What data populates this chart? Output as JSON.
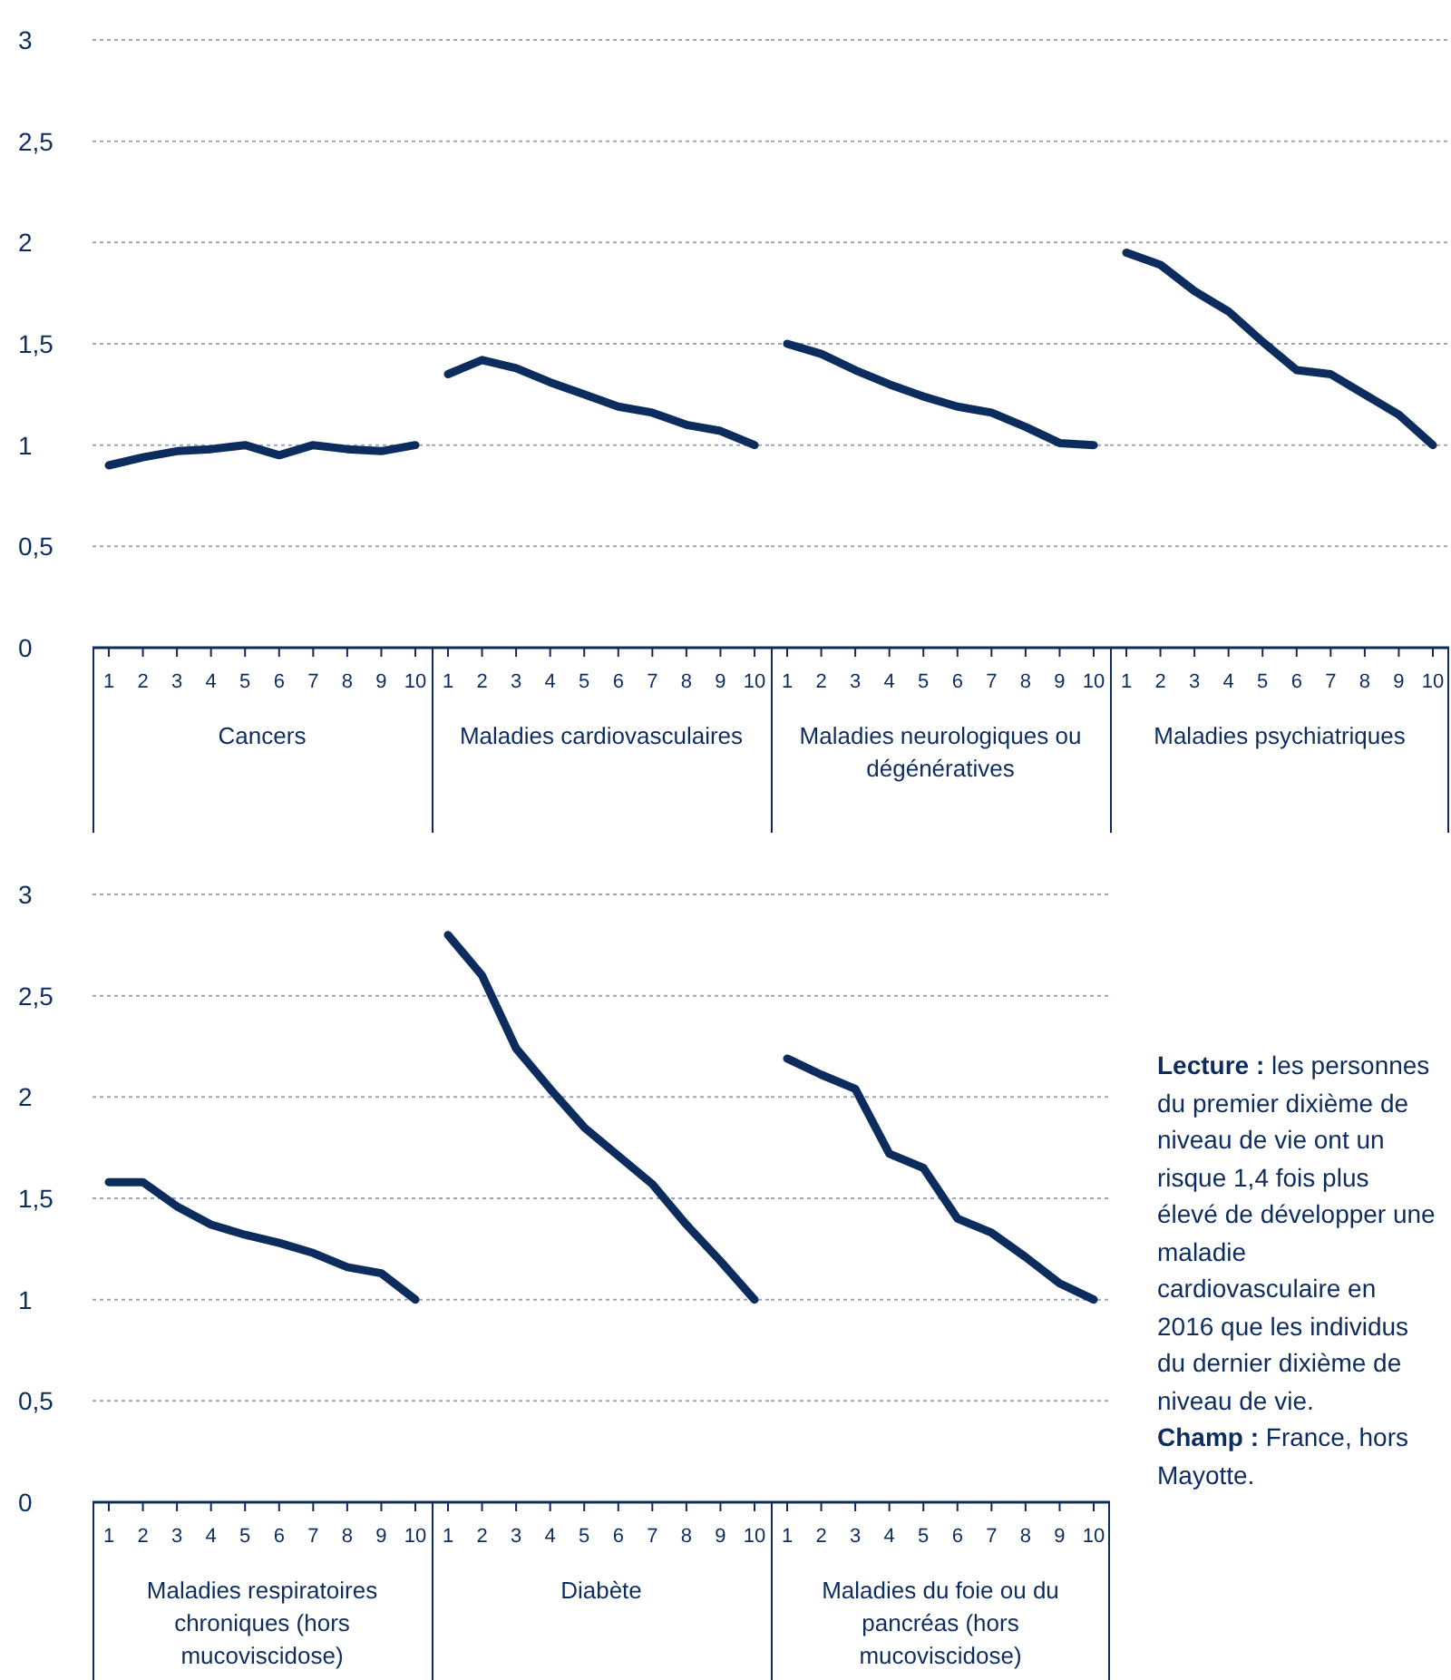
{
  "chart_data": [
    {
      "type": "line",
      "xlabel": "Cancers",
      "categories": [
        "1",
        "2",
        "3",
        "4",
        "5",
        "6",
        "7",
        "8",
        "9",
        "10"
      ],
      "values": [
        0.9,
        0.94,
        0.97,
        0.98,
        1.0,
        0.95,
        1.0,
        0.98,
        0.97,
        1.0
      ],
      "color": "#0c2c5e",
      "ylim": [
        0,
        3
      ],
      "yticks": [
        0,
        {
          "value": 0.5,
          "label": "0,5"
        },
        1,
        {
          "value": 1.5,
          "label": "1,5"
        },
        2,
        {
          "value": 2.5,
          "label": "2,5"
        },
        3
      ],
      "grid": "y"
    },
    {
      "type": "line",
      "xlabel": "Maladies cardiovasculaires",
      "categories": [
        "1",
        "2",
        "3",
        "4",
        "5",
        "6",
        "7",
        "8",
        "9",
        "10"
      ],
      "values": [
        1.35,
        1.42,
        1.38,
        1.31,
        1.25,
        1.19,
        1.16,
        1.1,
        1.07,
        1.0
      ],
      "color": "#0c2c5e",
      "ylim": [
        0,
        3
      ],
      "yticks": [
        0,
        0.5,
        1,
        1.5,
        2,
        2.5,
        3
      ],
      "grid": "y",
      "tick_labels": "x"
    },
    {
      "type": "line",
      "xlabel": "Maladies neurologiques ou dégénératives",
      "categories": [
        "1",
        "2",
        "3",
        "4",
        "5",
        "6",
        "7",
        "8",
        "9",
        "10"
      ],
      "values": [
        1.5,
        1.45,
        1.37,
        1.3,
        1.24,
        1.19,
        1.16,
        1.09,
        1.01,
        1.0
      ],
      "color": "#0c2c5e",
      "ylim": [
        0,
        3
      ],
      "yticks": [
        0,
        0.5,
        1,
        1.5,
        2,
        2.5,
        3
      ],
      "grid": "y",
      "tick_labels": "x"
    },
    {
      "type": "line",
      "xlabel": "Maladies psychiatriques",
      "categories": [
        "1",
        "2",
        "3",
        "4",
        "5",
        "6",
        "7",
        "8",
        "9",
        "10"
      ],
      "values": [
        1.95,
        1.89,
        1.76,
        1.66,
        1.51,
        1.37,
        1.35,
        1.25,
        1.15,
        1.0
      ],
      "color": "#0c2c5e",
      "ylim": [
        0,
        3
      ],
      "yticks": [
        0,
        0.5,
        1,
        1.5,
        2,
        2.5,
        3
      ],
      "grid": "y",
      "tick_labels": "x"
    },
    {
      "type": "line",
      "xlabel": "Maladies respiratoires chroniques (hors mucoviscidose)",
      "categories": [
        "1",
        "2",
        "3",
        "4",
        "5",
        "6",
        "7",
        "8",
        "9",
        "10"
      ],
      "values": [
        1.58,
        1.58,
        1.46,
        1.37,
        1.32,
        1.28,
        1.23,
        1.16,
        1.13,
        1.0
      ],
      "color": "#0c2c5e",
      "ylim": [
        0,
        3
      ],
      "yticks": [
        0,
        {
          "value": 0.5,
          "label": "0,5"
        },
        1,
        {
          "value": 1.5,
          "label": "1,5"
        },
        2,
        {
          "value": 2.5,
          "label": "2,5"
        },
        3
      ],
      "grid": "y"
    },
    {
      "type": "line",
      "xlabel": "Diabète",
      "categories": [
        "1",
        "2",
        "3",
        "4",
        "5",
        "6",
        "7",
        "8",
        "9",
        "10"
      ],
      "values": [
        2.8,
        2.6,
        2.24,
        2.04,
        1.85,
        1.71,
        1.57,
        1.37,
        1.19,
        1.0
      ],
      "color": "#0c2c5e",
      "ylim": [
        0,
        3
      ],
      "yticks": [
        0,
        0.5,
        1,
        1.5,
        2,
        2.5,
        3
      ],
      "grid": "y",
      "tick_labels": "x"
    },
    {
      "type": "line",
      "xlabel": "Maladies du foie ou du pancréas (hors mucoviscidose)",
      "categories": [
        "1",
        "2",
        "3",
        "4",
        "5",
        "6",
        "7",
        "8",
        "9",
        "10"
      ],
      "values": [
        2.19,
        2.11,
        2.04,
        1.72,
        1.65,
        1.4,
        1.33,
        1.21,
        1.08,
        1.0
      ],
      "color": "#0c2c5e",
      "ylim": [
        0,
        3
      ],
      "yticks": [
        0,
        0.5,
        1,
        1.5,
        2,
        2.5,
        3
      ],
      "grid": "y",
      "tick_labels": "x"
    },
    {
      "type": "other",
      "annotations": [
        "Lecture : les personnes du premier dixième de niveau de vie ont un risque 1,4 fois plus élevé de développer une maladie cardiovasculaire en 2016 que les individus du dernier dixième de niveau de vie.",
        "Champ : France, hors Mayotte."
      ]
    }
  ]
}
